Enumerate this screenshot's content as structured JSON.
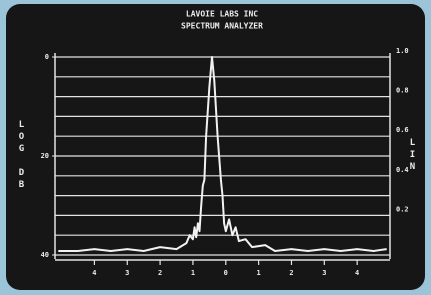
{
  "chart_data": {
    "type": "line",
    "title": "LAVOIE LABS INC",
    "subtitle": "SPECTRUM ANALYZER",
    "y_label": "LOG DB",
    "y2_label": "LIN",
    "color": "#f2f2f2",
    "x": [
      -5.1,
      -4.5,
      -4,
      -3.5,
      -3,
      -2.5,
      -2,
      -1.5,
      -1.2,
      -1.1,
      -1.0,
      -0.95,
      -0.9,
      -0.85,
      -0.8,
      -0.75,
      -0.7,
      -0.65,
      -0.6,
      -0.5,
      -0.42,
      -0.35,
      -0.25,
      -0.15,
      -0.1,
      -0.05,
      0,
      0.1,
      0.2,
      0.3,
      0.4,
      0.6,
      0.8,
      1.2,
      1.5,
      2,
      2.5,
      3,
      3.5,
      4,
      4.5,
      4.9
    ],
    "values": [
      0.02,
      0.02,
      0.03,
      0.02,
      0.03,
      0.02,
      0.04,
      0.03,
      0.06,
      0.1,
      0.08,
      0.14,
      0.09,
      0.16,
      0.12,
      0.25,
      0.35,
      0.38,
      0.6,
      0.85,
      1.0,
      0.88,
      0.6,
      0.38,
      0.3,
      0.16,
      0.12,
      0.18,
      0.1,
      0.14,
      0.07,
      0.08,
      0.04,
      0.05,
      0.02,
      0.03,
      0.02,
      0.03,
      0.02,
      0.03,
      0.02,
      0.03
    ],
    "xlim": [
      -5.2,
      5
    ],
    "xticks": [
      {
        "value": -4,
        "label": "4"
      },
      {
        "value": -3,
        "label": "3"
      },
      {
        "value": -2,
        "label": "2"
      },
      {
        "value": -1,
        "label": "1"
      },
      0,
      1,
      2,
      3,
      4
    ],
    "ylim": [
      40,
      0
    ],
    "yticks": [
      0,
      20,
      40
    ],
    "y2lim": [
      0,
      1
    ],
    "y2ticks": [
      0.2,
      0.4,
      0.6,
      0.8,
      {
        "value": 1,
        "label": "1.0"
      }
    ],
    "grid": true
  }
}
